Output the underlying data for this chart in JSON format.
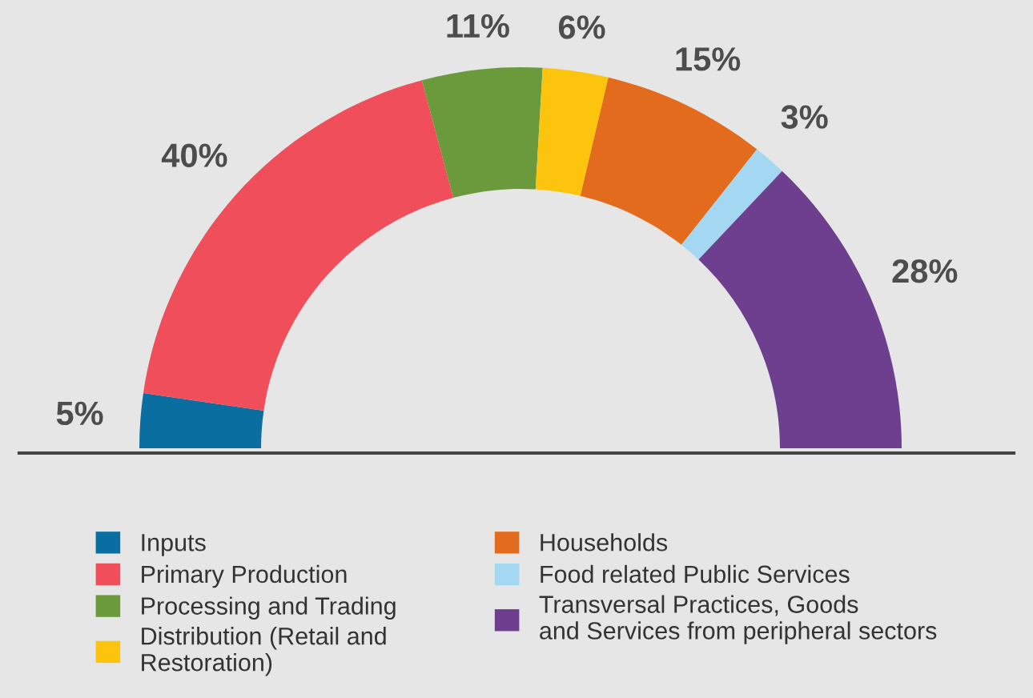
{
  "chart_data": {
    "type": "donut",
    "categories": [
      "Inputs",
      "Primary Production",
      "Processing and Trading",
      "Distribution (Retail and\nRestoration)",
      "Households",
      "Food related Public Services",
      "Transversal Practices, Goods\nand Services from peripheral sectors"
    ],
    "values": [
      5,
      40,
      11,
      6,
      15,
      3,
      28
    ],
    "value_labels": [
      "5%",
      "40%",
      "11%",
      "6%",
      "15%",
      "3%",
      "28%"
    ],
    "colors": [
      "#0a6fa0",
      "#f04e5a",
      "#6a9a3c",
      "#fdc40e",
      "#e26b1e",
      "#a4d8f2",
      "#6f3f8f"
    ],
    "legend": "bottom"
  }
}
